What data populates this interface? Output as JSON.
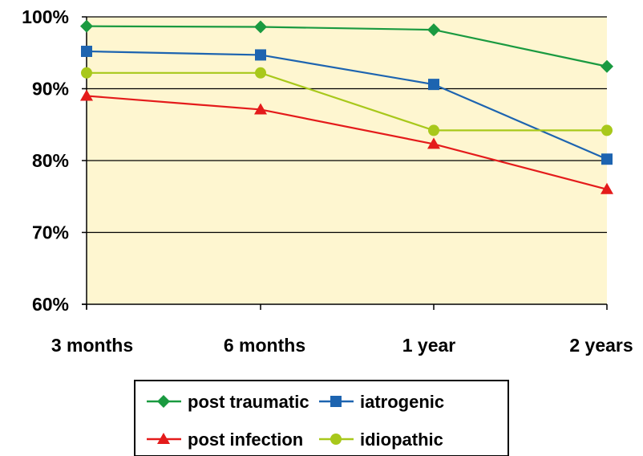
{
  "chart_data": {
    "type": "line",
    "categories": [
      "3 months",
      "6 months",
      "1 year",
      "2 years"
    ],
    "ylim": [
      60,
      100
    ],
    "yticks": [
      60,
      70,
      80,
      90,
      100
    ],
    "ytick_labels": [
      "60%",
      "70%",
      "80%",
      "90%",
      "100%"
    ],
    "grid": true,
    "plot_background": "#fef6d0",
    "legend_position": "bottom",
    "series": [
      {
        "name": "post traumatic",
        "values": [
          98.7,
          98.6,
          98.2,
          93.1
        ],
        "color": "#1a9a40",
        "marker": "diamond"
      },
      {
        "name": "iatrogenic",
        "values": [
          95.2,
          94.7,
          90.6,
          80.2
        ],
        "color": "#1d64b0",
        "marker": "square"
      },
      {
        "name": "post infection",
        "values": [
          89.0,
          87.1,
          82.3,
          76.0
        ],
        "color": "#e41b1b",
        "marker": "triangle"
      },
      {
        "name": "idiopathic",
        "values": [
          92.2,
          92.2,
          84.2,
          84.2
        ],
        "color": "#a8c81b",
        "marker": "circle"
      }
    ]
  }
}
